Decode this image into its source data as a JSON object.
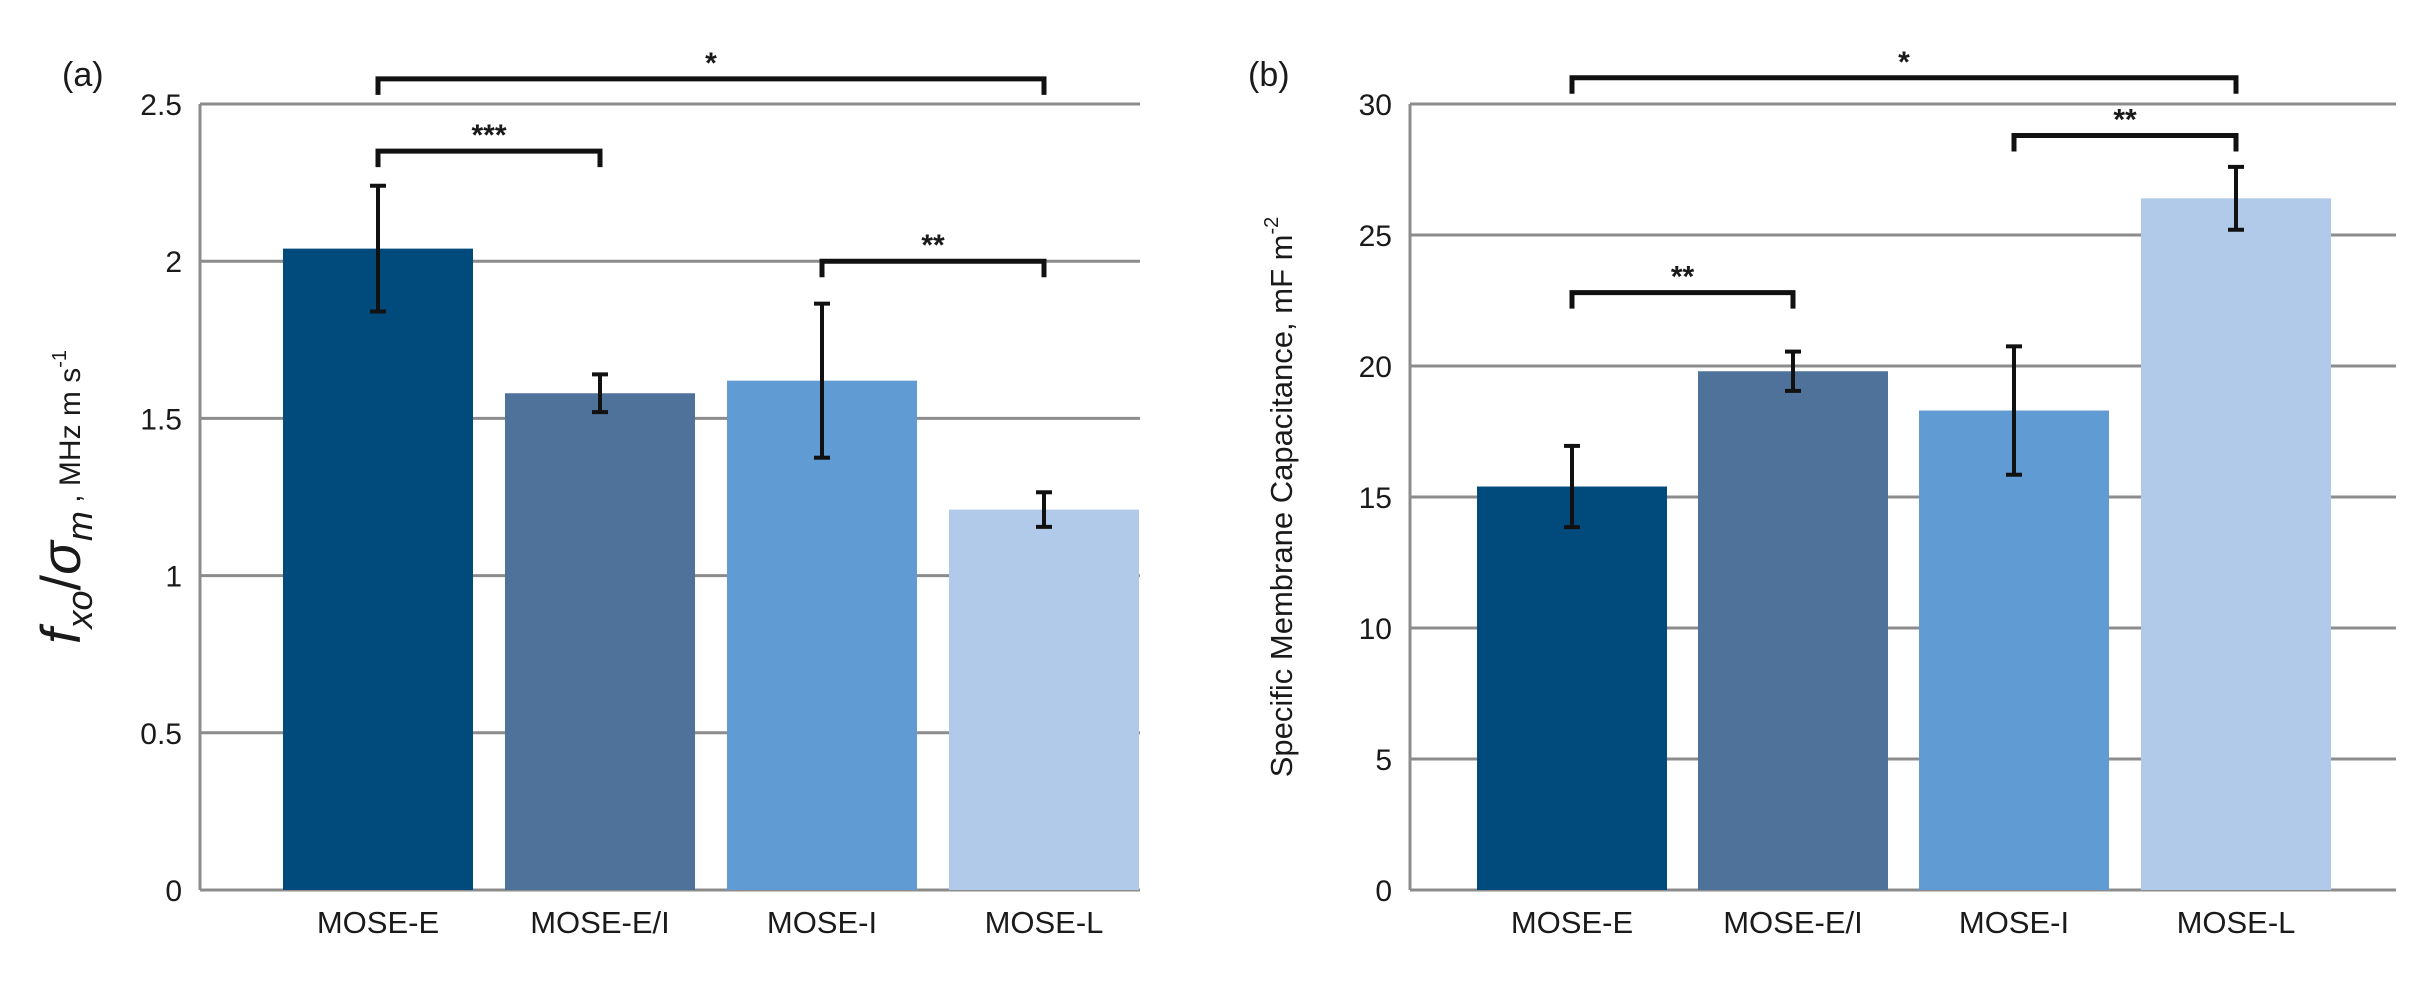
{
  "chart_data": [
    {
      "type": "bar",
      "panel_label": "(a)",
      "categories": [
        "MOSE-E",
        "MOSE-E/I",
        "MOSE-I",
        "MOSE-L"
      ],
      "values": [
        2.04,
        1.58,
        1.62,
        1.21
      ],
      "errors": [
        0.2,
        0.06,
        0.245,
        0.055
      ],
      "colors": [
        "#004b7b",
        "#4e7299",
        "#619bd3",
        "#b2caea"
      ],
      "ylabel": {
        "main": "f",
        "sub": "xo",
        "sep": "/",
        "main2": "σ",
        "sub2": "m",
        "units": " , MHz m s",
        "units_exp": "-1"
      },
      "ylim": [
        0,
        2.5
      ],
      "ytick_values": [
        0,
        0.5,
        1,
        1.5,
        2,
        2.5
      ],
      "ytick_labels": [
        "0",
        "0.5",
        "1",
        "1.5",
        "2",
        "2.5"
      ],
      "grid": true,
      "significance": [
        {
          "from": 0,
          "to": 3,
          "label": "*",
          "y": 2.58
        },
        {
          "from": 0,
          "to": 1,
          "label": "***",
          "y": 2.35
        },
        {
          "from": 2,
          "to": 3,
          "label": "**",
          "y": 2.0
        }
      ]
    },
    {
      "type": "bar",
      "panel_label": "(b)",
      "categories": [
        "MOSE-E",
        "MOSE-E/I",
        "MOSE-I",
        "MOSE-L"
      ],
      "values": [
        15.4,
        19.8,
        18.3,
        26.4
      ],
      "errors": [
        1.55,
        0.75,
        2.45,
        1.2
      ],
      "colors": [
        "#004b7b",
        "#4e7299",
        "#619bd3",
        "#b2caea"
      ],
      "ylabel": {
        "text": "Specific Membrane Capacitance, mF m",
        "exp": "-2"
      },
      "ylim": [
        0,
        30
      ],
      "ytick_values": [
        0,
        5,
        10,
        15,
        20,
        25,
        30
      ],
      "ytick_labels": [
        "0",
        "5",
        "10",
        "15",
        "20",
        "25",
        "30"
      ],
      "grid": true,
      "significance": [
        {
          "from": 0,
          "to": 3,
          "label": "*",
          "y": 31.0
        },
        {
          "from": 2,
          "to": 3,
          "label": "**",
          "y": 28.8
        },
        {
          "from": 0,
          "to": 1,
          "label": "**",
          "y": 22.8
        }
      ]
    }
  ]
}
